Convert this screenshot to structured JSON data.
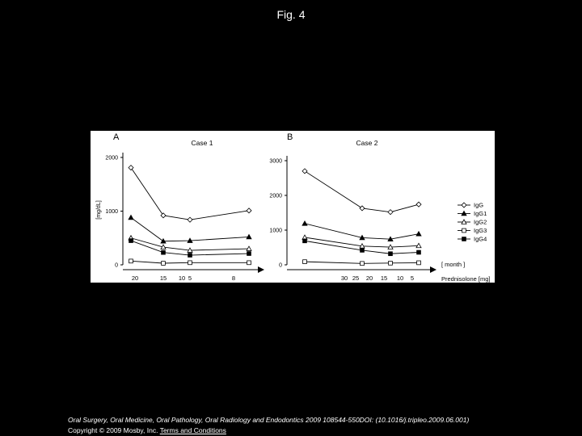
{
  "page": {
    "title": "Fig. 4",
    "citation": "Oral Surgery, Oral Medicine, Oral Pathology, Oral Radiology and Endodontics 2009 108544-550DOI: (10.1016/j.tripleo.2009.06.001)",
    "copyright": "Copyright © 2009 Mosby, Inc.",
    "terms_link": "Terms and Conditions"
  },
  "legend": [
    "IgG",
    "IgG1",
    "IgG2",
    "IgG3",
    "IgG4"
  ],
  "axis_note_month": "[ month ]",
  "axis_note_dose": "Prednisolone [mg]",
  "colors": {
    "background": "#000000",
    "panel": "#ffffff",
    "ink": "#000000",
    "text": "#ffffff"
  },
  "chart_data": [
    {
      "type": "line",
      "panel_letter": "A",
      "title": "Case 1",
      "ylabel": "[mg/dL]",
      "ylim": [
        0,
        2000
      ],
      "yticks": [
        0,
        1000,
        2000
      ],
      "x": [
        0,
        1,
        2,
        3
      ],
      "dose_labels": [
        "20",
        "15",
        "10",
        "5",
        "8"
      ],
      "series": [
        {
          "name": "IgG",
          "marker": "diamond",
          "values": [
            1810,
            920,
            840,
            1010
          ]
        },
        {
          "name": "IgG1",
          "marker": "filled-triangle",
          "values": [
            880,
            440,
            450,
            520
          ]
        },
        {
          "name": "IgG2",
          "marker": "open-triangle",
          "values": [
            500,
            330,
            270,
            300
          ]
        },
        {
          "name": "IgG3",
          "marker": "open-square",
          "values": [
            70,
            30,
            40,
            40
          ]
        },
        {
          "name": "IgG4",
          "marker": "filled-square",
          "values": [
            450,
            230,
            180,
            210
          ]
        }
      ]
    },
    {
      "type": "line",
      "panel_letter": "B",
      "title": "Case 2",
      "ylabel": "",
      "ylim": [
        0,
        3000
      ],
      "yticks": [
        0,
        1000,
        2000,
        3000
      ],
      "x": [
        0,
        1,
        2,
        3
      ],
      "dose_labels": [
        "30",
        "25",
        "20",
        "15",
        "10",
        "5"
      ],
      "series": [
        {
          "name": "IgG",
          "marker": "diamond",
          "values": [
            2700,
            1630,
            1520,
            1740
          ]
        },
        {
          "name": "IgG1",
          "marker": "filled-triangle",
          "values": [
            1190,
            780,
            740,
            890
          ]
        },
        {
          "name": "IgG2",
          "marker": "open-triangle",
          "values": [
            790,
            540,
            510,
            550
          ]
        },
        {
          "name": "IgG3",
          "marker": "open-square",
          "values": [
            90,
            40,
            50,
            60
          ]
        },
        {
          "name": "IgG4",
          "marker": "filled-square",
          "values": [
            690,
            420,
            320,
            360
          ]
        }
      ]
    }
  ]
}
